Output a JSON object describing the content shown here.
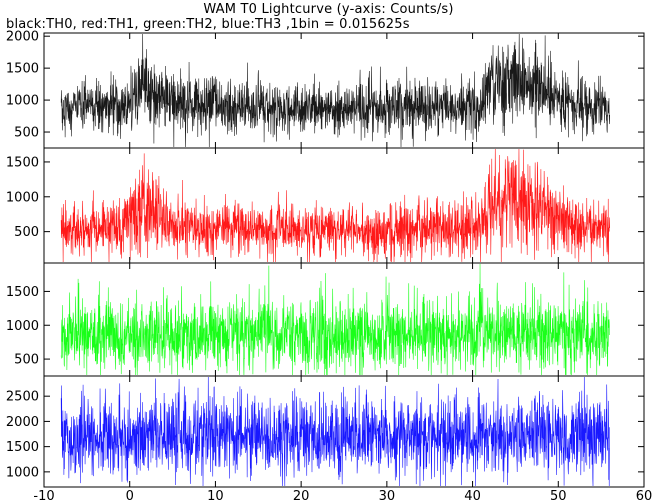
{
  "title": "WAM T0 Lightcurve (y-axis: Counts/s)",
  "subtitle": "black:TH0, red:TH1, green:TH2, blue:TH3 ,1bin = 0.015625s",
  "chart_data": {
    "type": "line",
    "x_range": [
      -10,
      60
    ],
    "x_ticks": [
      -10,
      0,
      10,
      20,
      30,
      40,
      50,
      60
    ],
    "bin_size_s": 0.015625,
    "data_x_range": [
      -8,
      56
    ],
    "panels": [
      {
        "name": "TH0",
        "color": "#000000",
        "ylim": [
          250,
          2050
        ],
        "y_ticks": [
          500,
          1000,
          1500,
          2000
        ],
        "baseline": 880,
        "noise": 210,
        "trend": [
          [
            -8,
            860
          ],
          [
            -1,
            900
          ],
          [
            0,
            1000
          ],
          [
            1.5,
            1250
          ],
          [
            3,
            1050
          ],
          [
            6,
            920
          ],
          [
            20,
            860
          ],
          [
            38,
            880
          ],
          [
            41,
            930
          ],
          [
            42,
            1300
          ],
          [
            45,
            1380
          ],
          [
            48,
            1250
          ],
          [
            50,
            1050
          ],
          [
            53,
            900
          ],
          [
            56,
            860
          ]
        ]
      },
      {
        "name": "TH1",
        "color": "#ff0000",
        "ylim": [
          50,
          1700
        ],
        "y_ticks": [
          500,
          1000,
          1500
        ],
        "baseline": 520,
        "noise": 190,
        "trend": [
          [
            -8,
            520
          ],
          [
            -1,
            550
          ],
          [
            0,
            700
          ],
          [
            1.5,
            950
          ],
          [
            3,
            760
          ],
          [
            6,
            560
          ],
          [
            20,
            520
          ],
          [
            38,
            540
          ],
          [
            41,
            620
          ],
          [
            42,
            880
          ],
          [
            45,
            950
          ],
          [
            48,
            860
          ],
          [
            50,
            700
          ],
          [
            53,
            560
          ],
          [
            56,
            520
          ]
        ]
      },
      {
        "name": "TH2",
        "color": "#00ff00",
        "ylim": [
          250,
          1920
        ],
        "y_ticks": [
          500,
          1000,
          1500
        ],
        "baseline": 860,
        "noise": 270,
        "trend": [
          [
            -8,
            860
          ],
          [
            56,
            860
          ]
        ]
      },
      {
        "name": "TH3",
        "color": "#0000ff",
        "ylim": [
          700,
          2900
        ],
        "y_ticks": [
          1000,
          1500,
          2000,
          2500
        ],
        "baseline": 1720,
        "noise": 400,
        "trend": [
          [
            -8,
            1720
          ],
          [
            56,
            1720
          ]
        ]
      }
    ]
  }
}
